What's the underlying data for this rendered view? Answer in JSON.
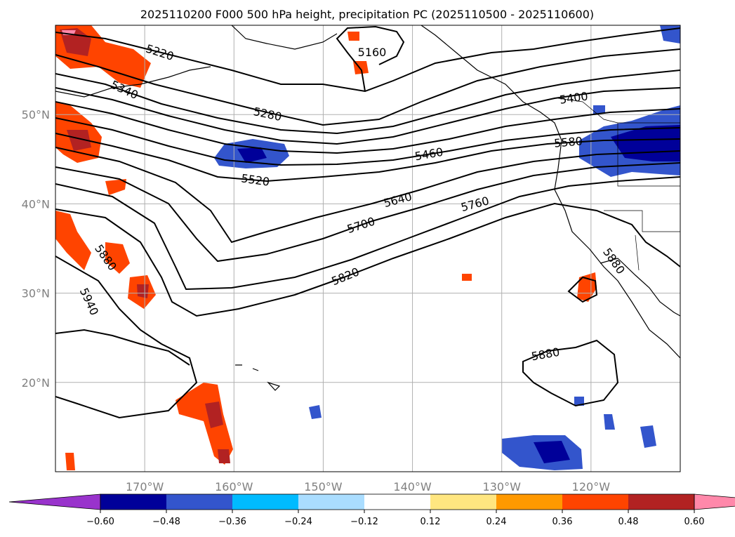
{
  "title": "2025110200 F000 500 hPa height, precipitation PC (2025110500 - 2025110600)",
  "chart_data": {
    "type": "contour-map",
    "title": "2025110200 F000 500 hPa height, precipitation PC (2025110500 - 2025110600)",
    "projection": "plate carree",
    "lon_range": [
      180,
      110
    ],
    "lat_range": [
      10,
      60
    ],
    "lon_ticks": [
      170,
      160,
      150,
      140,
      130,
      120
    ],
    "lon_tick_labels": [
      "170°W",
      "160°W",
      "150°W",
      "140°W",
      "130°W",
      "120°W"
    ],
    "lat_ticks": [
      20,
      30,
      40,
      50
    ],
    "lat_tick_labels": [
      "20°N",
      "30°N",
      "40°N",
      "50°N"
    ],
    "grid": true,
    "height_contours_m": [
      {
        "level": 5160,
        "label": "5160"
      },
      {
        "level": 5220,
        "label": "5220"
      },
      {
        "level": 5280,
        "label": "5280"
      },
      {
        "level": 5340,
        "label": "5340"
      },
      {
        "level": 5400,
        "label": "5400"
      },
      {
        "level": 5460,
        "label": "5460"
      },
      {
        "level": 5520,
        "label": "5520"
      },
      {
        "level": 5580,
        "label": "5580"
      },
      {
        "level": 5640,
        "label": "5640"
      },
      {
        "level": 5700,
        "label": "5700"
      },
      {
        "level": 5760,
        "label": "5760"
      },
      {
        "level": 5820,
        "label": "5820"
      },
      {
        "level": 5880,
        "label": "5880"
      },
      {
        "level": 5940,
        "label": "5940"
      }
    ],
    "colorbar": {
      "orientation": "horizontal",
      "extend": "both",
      "boundaries": [
        -0.6,
        -0.48,
        -0.36,
        -0.24,
        -0.12,
        0.12,
        0.24,
        0.36,
        0.48,
        0.6
      ],
      "tick_labels": [
        "−0.60",
        "−0.48",
        "−0.36",
        "−0.24",
        "−0.12",
        "0.12",
        "0.24",
        "0.36",
        "0.48",
        "0.60"
      ],
      "colors": [
        "#9933cc",
        "#000099",
        "#3355cc",
        "#00bbff",
        "#aaddff",
        "#ffffff",
        "#ffe680",
        "#ff9900",
        "#ff4400",
        "#b22222",
        "#ff88aa"
      ]
    },
    "precip_regions": [
      {
        "name": "west-pacific-positive",
        "sign": "positive",
        "lon_range": [
          180,
          165
        ],
        "lat_range": [
          10,
          60
        ]
      },
      {
        "name": "gulf-of-alaska-negative",
        "sign": "negative",
        "lon_range": [
          162,
          155
        ],
        "lat_range": [
          44,
          48
        ]
      },
      {
        "name": "pacific-northwest-negative",
        "sign": "negative",
        "lon_range": [
          125,
          110
        ],
        "lat_range": [
          43,
          50
        ]
      },
      {
        "name": "baja-positive",
        "sign": "positive",
        "lon_range": [
          123,
          120
        ],
        "lat_range": [
          29,
          32
        ]
      },
      {
        "name": "eastern-tropical-negative",
        "sign": "negative",
        "lon_range": [
          130,
          122
        ],
        "lat_range": [
          10,
          15
        ]
      }
    ]
  }
}
